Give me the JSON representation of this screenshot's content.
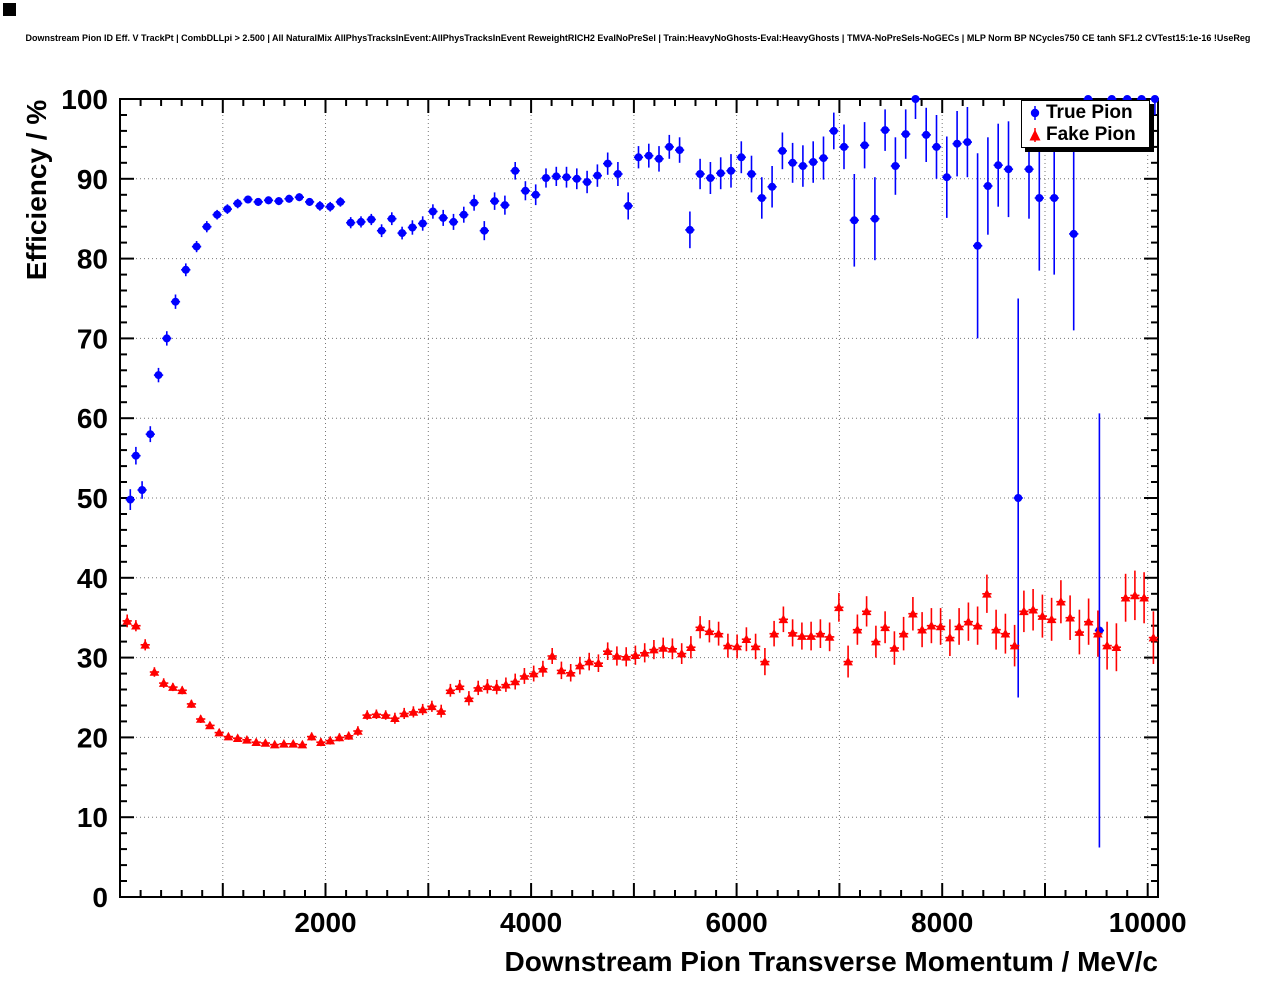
{
  "page": {
    "title": "Downstream Pion ID Eff. V TrackPt | CombDLLpi > 2.500 | All NaturalMix AllPhysTracksInEvent:AllPhysTracksInEvent ReweightRICH2 EvalNoPreSel | Train:HeavyNoGhosts-Eval:HeavyGhosts | TMVA-NoPreSels-NoGECs | MLP Norm BP NCycles750 CE tanh SF1.2 CVTest15:1e-16 !UseReg"
  },
  "legend": {
    "entries": [
      {
        "label": "True Pion",
        "color": "#0000ff",
        "marker": "circle"
      },
      {
        "label": "Fake Pion",
        "color": "#ff0000",
        "marker": "triangle"
      }
    ]
  },
  "chart_data": {
    "type": "scatter",
    "title": "Downstream Pion ID Eff. V TrackPt | CombDLLpi > 2.500 | All NaturalMix AllPhysTracksInEvent:AllPhysTracksInEvent ReweightRICH2 EvalNoPreSel | Train:HeavyNoGhosts-Eval:HeavyGhosts | TMVA-NoPreSels-NoGECs | MLP Norm BP NCycles750 CE tanh SF1.2 CVTest15:1e-16 !UseReg",
    "xlabel": "Downstream Pion Transverse Momentum / MeV/c",
    "ylabel": "Efficiency / %",
    "xlim": [
      0,
      10100
    ],
    "ylim": [
      0,
      100
    ],
    "x_tick_labels": [
      2000,
      4000,
      6000,
      8000,
      10000
    ],
    "y_tick_labels": [
      0,
      10,
      20,
      30,
      40,
      50,
      60,
      70,
      80,
      90,
      100
    ],
    "x_major_step": 1000,
    "x_minor_step": 200,
    "y_major_step": 10,
    "y_minor_step": 2,
    "x_grid_step": 1000,
    "y_grid_step": 10,
    "grid": "dotted",
    "grid_color": "#777777",
    "background_color": "#ffffff",
    "frame_color": "#000000",
    "legend_position": "top-right",
    "series": [
      {
        "name": "True Pion",
        "color": "#0000ff",
        "marker": "circle",
        "bin_halfwidth": 45,
        "points": [
          [
            100,
            49.8,
            1.3
          ],
          [
            155,
            55.3,
            1.1
          ],
          [
            215,
            51.0,
            1.1
          ],
          [
            295,
            58.0,
            1.0
          ],
          [
            375,
            65.4,
            0.9
          ],
          [
            455,
            70.0,
            0.9
          ],
          [
            540,
            74.6,
            0.9
          ],
          [
            640,
            78.6,
            0.8
          ],
          [
            745,
            81.5,
            0.7
          ],
          [
            845,
            84.0,
            0.7
          ],
          [
            945,
            85.5,
            0.6
          ],
          [
            1045,
            86.2,
            0.6
          ],
          [
            1145,
            86.9,
            0.6
          ],
          [
            1245,
            87.4,
            0.5
          ],
          [
            1345,
            87.1,
            0.5
          ],
          [
            1445,
            87.3,
            0.5
          ],
          [
            1545,
            87.2,
            0.5
          ],
          [
            1645,
            87.5,
            0.5
          ],
          [
            1745,
            87.7,
            0.5
          ],
          [
            1845,
            87.1,
            0.5
          ],
          [
            1945,
            86.6,
            0.6
          ],
          [
            2045,
            86.5,
            0.6
          ],
          [
            2145,
            87.1,
            0.6
          ],
          [
            2245,
            84.5,
            0.7
          ],
          [
            2345,
            84.6,
            0.7
          ],
          [
            2445,
            84.9,
            0.7
          ],
          [
            2545,
            83.5,
            0.8
          ],
          [
            2645,
            85.0,
            0.8
          ],
          [
            2745,
            83.2,
            0.8
          ],
          [
            2845,
            83.9,
            0.9
          ],
          [
            2945,
            84.4,
            0.9
          ],
          [
            3045,
            85.9,
            0.9
          ],
          [
            3145,
            85.1,
            1.0
          ],
          [
            3245,
            84.6,
            1.0
          ],
          [
            3345,
            85.5,
            1.0
          ],
          [
            3445,
            87.0,
            1.0
          ],
          [
            3545,
            83.5,
            1.2
          ],
          [
            3645,
            87.2,
            1.1
          ],
          [
            3745,
            86.7,
            1.2
          ],
          [
            3845,
            91.0,
            1.1
          ],
          [
            3945,
            88.5,
            1.2
          ],
          [
            4045,
            88.0,
            1.3
          ],
          [
            4145,
            90.1,
            1.2
          ],
          [
            4245,
            90.3,
            1.2
          ],
          [
            4345,
            90.2,
            1.3
          ],
          [
            4445,
            90.0,
            1.3
          ],
          [
            4545,
            89.6,
            1.4
          ],
          [
            4645,
            90.4,
            1.4
          ],
          [
            4745,
            91.9,
            1.4
          ],
          [
            4845,
            90.6,
            1.5
          ],
          [
            4945,
            86.6,
            1.7
          ],
          [
            5045,
            92.7,
            1.4
          ],
          [
            5145,
            92.9,
            1.5
          ],
          [
            5245,
            92.5,
            1.6
          ],
          [
            5345,
            94.0,
            1.5
          ],
          [
            5445,
            93.6,
            1.6
          ],
          [
            5545,
            83.6,
            2.3
          ],
          [
            5645,
            90.6,
            1.9
          ],
          [
            5745,
            90.1,
            2.0
          ],
          [
            5845,
            90.7,
            2.0
          ],
          [
            5945,
            91.0,
            2.1
          ],
          [
            6045,
            92.7,
            2.0
          ],
          [
            6145,
            90.6,
            2.3
          ],
          [
            6245,
            87.6,
            2.6
          ],
          [
            6345,
            89.0,
            2.6
          ],
          [
            6445,
            93.5,
            2.3
          ],
          [
            6545,
            92.0,
            2.5
          ],
          [
            6645,
            91.6,
            2.6
          ],
          [
            6745,
            92.1,
            2.6
          ],
          [
            6845,
            92.6,
            2.7
          ],
          [
            6945,
            96.0,
            2.3
          ],
          [
            7045,
            94.0,
            2.8
          ],
          [
            7145,
            84.8,
            5.8
          ],
          [
            7245,
            94.2,
            2.9
          ],
          [
            7345,
            85.0,
            5.2
          ],
          [
            7445,
            96.1,
            2.6
          ],
          [
            7545,
            91.6,
            3.6
          ],
          [
            7645,
            95.6,
            3.1
          ],
          [
            7740,
            100.0,
            2.5
          ],
          [
            7845,
            95.5,
            3.4
          ],
          [
            7945,
            94.0,
            4.0
          ],
          [
            8045,
            90.2,
            5.1
          ],
          [
            8145,
            94.4,
            4.1
          ],
          [
            8245,
            94.6,
            4.4
          ],
          [
            8345,
            81.6,
            11.6
          ],
          [
            8445,
            89.1,
            6.1
          ],
          [
            8545,
            91.7,
            5.2
          ],
          [
            8645,
            91.2,
            6.0
          ],
          [
            8740,
            50.0,
            25.0
          ],
          [
            8845,
            91.2,
            6.2
          ],
          [
            8945,
            87.6,
            9.1
          ],
          [
            9090,
            87.6,
            9.6
          ],
          [
            9280,
            83.1,
            12.1
          ],
          [
            9420,
            100.0,
            5.2
          ],
          [
            9530,
            33.4,
            27.2
          ],
          [
            9650,
            100.0,
            3.2
          ],
          [
            9800,
            100.0,
            2.6
          ],
          [
            9940,
            100.0,
            2.2
          ],
          [
            10070,
            100.0,
            2.0
          ]
        ]
      },
      {
        "name": "Fake Pion",
        "color": "#ff0000",
        "marker": "triangle",
        "bin_halfwidth": 45,
        "points": [
          [
            70,
            34.6,
            0.8
          ],
          [
            155,
            34.0,
            0.7
          ],
          [
            245,
            31.6,
            0.7
          ],
          [
            335,
            28.2,
            0.6
          ],
          [
            425,
            26.8,
            0.6
          ],
          [
            515,
            26.3,
            0.5
          ],
          [
            605,
            25.9,
            0.5
          ],
          [
            695,
            24.2,
            0.5
          ],
          [
            785,
            22.3,
            0.5
          ],
          [
            875,
            21.5,
            0.4
          ],
          [
            965,
            20.6,
            0.4
          ],
          [
            1055,
            20.1,
            0.4
          ],
          [
            1145,
            19.9,
            0.4
          ],
          [
            1235,
            19.7,
            0.4
          ],
          [
            1325,
            19.4,
            0.4
          ],
          [
            1415,
            19.3,
            0.4
          ],
          [
            1505,
            19.1,
            0.4
          ],
          [
            1595,
            19.2,
            0.4
          ],
          [
            1685,
            19.2,
            0.4
          ],
          [
            1775,
            19.1,
            0.4
          ],
          [
            1865,
            20.1,
            0.5
          ],
          [
            1955,
            19.4,
            0.5
          ],
          [
            2045,
            19.6,
            0.5
          ],
          [
            2135,
            20.0,
            0.5
          ],
          [
            2225,
            20.2,
            0.5
          ],
          [
            2315,
            20.8,
            0.6
          ],
          [
            2405,
            22.8,
            0.6
          ],
          [
            2495,
            22.9,
            0.6
          ],
          [
            2585,
            22.8,
            0.6
          ],
          [
            2675,
            22.4,
            0.7
          ],
          [
            2765,
            23.0,
            0.7
          ],
          [
            2855,
            23.2,
            0.7
          ],
          [
            2945,
            23.5,
            0.7
          ],
          [
            3035,
            23.9,
            0.7
          ],
          [
            3125,
            23.3,
            0.8
          ],
          [
            3215,
            25.9,
            0.8
          ],
          [
            3305,
            26.4,
            0.8
          ],
          [
            3395,
            24.9,
            0.9
          ],
          [
            3485,
            26.2,
            0.9
          ],
          [
            3575,
            26.4,
            0.9
          ],
          [
            3665,
            26.3,
            0.9
          ],
          [
            3755,
            26.6,
            0.9
          ],
          [
            3845,
            27.0,
            1.0
          ],
          [
            3935,
            27.7,
            1.0
          ],
          [
            4025,
            28.0,
            1.0
          ],
          [
            4115,
            28.6,
            1.0
          ],
          [
            4205,
            30.2,
            1.0
          ],
          [
            4295,
            28.4,
            1.1
          ],
          [
            4385,
            28.1,
            1.1
          ],
          [
            4475,
            29.0,
            1.1
          ],
          [
            4565,
            29.5,
            1.1
          ],
          [
            4655,
            29.3,
            1.1
          ],
          [
            4745,
            30.8,
            1.1
          ],
          [
            4835,
            30.2,
            1.2
          ],
          [
            4925,
            30.1,
            1.2
          ],
          [
            5015,
            30.3,
            1.2
          ],
          [
            5105,
            30.6,
            1.2
          ],
          [
            5195,
            31.0,
            1.2
          ],
          [
            5285,
            31.2,
            1.3
          ],
          [
            5375,
            31.1,
            1.3
          ],
          [
            5465,
            30.5,
            1.3
          ],
          [
            5555,
            31.3,
            1.4
          ],
          [
            5645,
            33.8,
            1.4
          ],
          [
            5735,
            33.3,
            1.4
          ],
          [
            5825,
            33.0,
            1.5
          ],
          [
            5915,
            31.5,
            1.5
          ],
          [
            6005,
            31.4,
            1.5
          ],
          [
            6095,
            32.3,
            1.5
          ],
          [
            6185,
            31.4,
            1.6
          ],
          [
            6275,
            29.5,
            1.7
          ],
          [
            6365,
            33.0,
            1.6
          ],
          [
            6455,
            34.8,
            1.6
          ],
          [
            6545,
            33.1,
            1.7
          ],
          [
            6635,
            32.7,
            1.7
          ],
          [
            6725,
            32.7,
            1.8
          ],
          [
            6815,
            33.0,
            1.8
          ],
          [
            6905,
            32.6,
            1.8
          ],
          [
            6995,
            36.3,
            1.8
          ],
          [
            7085,
            29.5,
            2.0
          ],
          [
            7175,
            33.5,
            1.9
          ],
          [
            7265,
            35.8,
            1.9
          ],
          [
            7355,
            32.0,
            2.0
          ],
          [
            7445,
            33.8,
            2.0
          ],
          [
            7535,
            31.2,
            2.1
          ],
          [
            7625,
            33.0,
            2.1
          ],
          [
            7715,
            35.5,
            2.1
          ],
          [
            7805,
            33.5,
            2.2
          ],
          [
            7895,
            34.0,
            2.2
          ],
          [
            7985,
            33.9,
            2.3
          ],
          [
            8075,
            32.5,
            2.3
          ],
          [
            8165,
            33.9,
            2.3
          ],
          [
            8255,
            34.5,
            2.4
          ],
          [
            8345,
            34.0,
            2.4
          ],
          [
            8435,
            38.0,
            2.4
          ],
          [
            8525,
            33.5,
            2.5
          ],
          [
            8615,
            33.0,
            2.5
          ],
          [
            8705,
            31.5,
            2.6
          ],
          [
            8795,
            35.8,
            2.6
          ],
          [
            8885,
            36.0,
            2.6
          ],
          [
            8975,
            35.2,
            2.7
          ],
          [
            9065,
            34.8,
            2.7
          ],
          [
            9155,
            37.0,
            2.7
          ],
          [
            9245,
            35.0,
            2.8
          ],
          [
            9335,
            33.2,
            2.8
          ],
          [
            9425,
            34.5,
            2.9
          ],
          [
            9515,
            33.0,
            2.9
          ],
          [
            9605,
            31.5,
            3.0
          ],
          [
            9695,
            31.3,
            3.0
          ],
          [
            9785,
            37.5,
            3.0
          ],
          [
            9875,
            37.8,
            3.1
          ],
          [
            9965,
            37.5,
            3.2
          ],
          [
            10055,
            32.5,
            3.3
          ]
        ]
      }
    ]
  }
}
